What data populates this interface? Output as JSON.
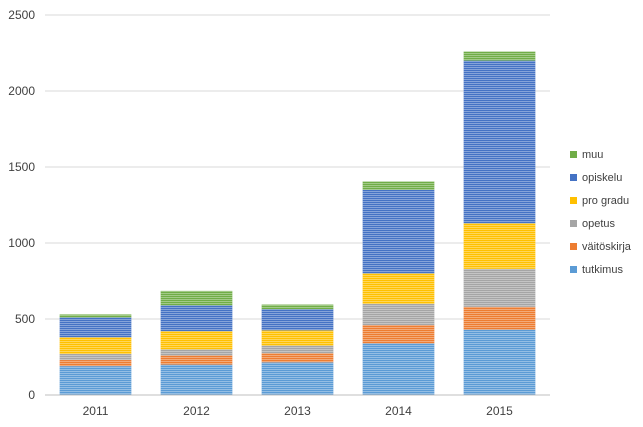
{
  "chart_data": {
    "type": "bar",
    "stacked": true,
    "categories": [
      "2011",
      "2012",
      "2013",
      "2014",
      "2015"
    ],
    "series": [
      {
        "name": "tutkimus",
        "color": "#5b9bd5",
        "values": [
          190,
          200,
          215,
          340,
          430
        ]
      },
      {
        "name": "väitöskirja",
        "color": "#ed7d31",
        "values": [
          40,
          60,
          60,
          120,
          150
        ]
      },
      {
        "name": "opetus",
        "color": "#a5a5a5",
        "values": [
          40,
          40,
          50,
          140,
          250
        ]
      },
      {
        "name": "pro gradu",
        "color": "#ffc000",
        "values": [
          110,
          120,
          100,
          200,
          300
        ]
      },
      {
        "name": "opiskelu",
        "color": "#4472c4",
        "values": [
          130,
          170,
          140,
          550,
          1070
        ]
      },
      {
        "name": "muu",
        "color": "#70ad47",
        "values": [
          20,
          95,
          30,
          55,
          60
        ]
      }
    ],
    "ylim": [
      0,
      2500
    ],
    "yticks": [
      0,
      500,
      1000,
      1500,
      2000,
      2500
    ],
    "grid": true,
    "legend_position": "right",
    "title": "",
    "xlabel": "",
    "ylabel": ""
  }
}
